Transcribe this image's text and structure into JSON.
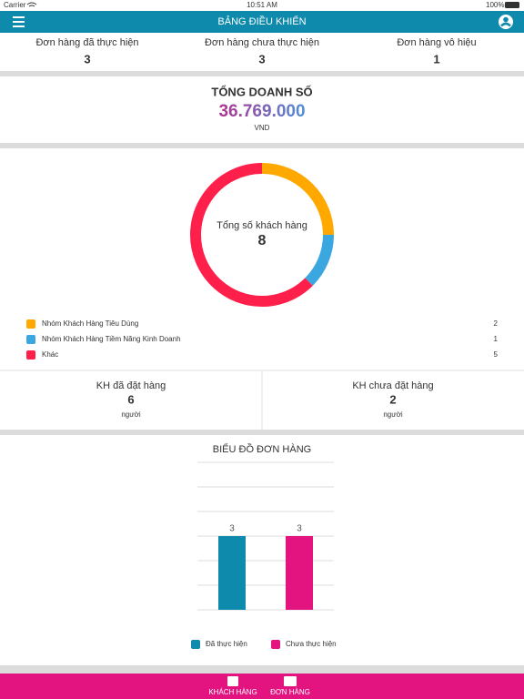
{
  "status_bar": {
    "carrier": "Carrier",
    "time": "10:51 AM",
    "battery": "100%"
  },
  "header": {
    "title": "BẢNG ĐIỀU KHIỂN"
  },
  "order_stats": [
    {
      "label": "Đơn hàng đã thực hiện",
      "value": 3
    },
    {
      "label": "Đơn hàng chưa thực hiện",
      "value": 3
    },
    {
      "label": "Đơn hàng vô hiệu",
      "value": 1
    }
  ],
  "revenue": {
    "title": "TỔNG DOANH SỐ",
    "amount": "36.769.000",
    "unit": "VND"
  },
  "customer_stats": [
    {
      "label": "KH đã đặt hàng",
      "value": 6,
      "unit": "người"
    },
    {
      "label": "KH chưa đặt hàng",
      "value": 2,
      "unit": "người"
    }
  ],
  "tab_bar": {
    "items": [
      "KHÁCH HÀNG",
      "ĐƠN HÀNG"
    ]
  },
  "chart_data": [
    {
      "type": "donut",
      "center_label": "Tổng số khách hàng",
      "total": 8,
      "categories": [
        "Nhóm Khách Hàng Tiêu Dùng",
        "Nhóm Khách Hàng Tiềm Năng Kinh Doanh",
        "Khác"
      ],
      "values": [
        2,
        1,
        5
      ],
      "colors": [
        "#ffa800",
        "#3ba7e0",
        "#ff1f4b"
      ]
    },
    {
      "type": "bar",
      "title": "BIỂU ĐỒ ĐƠN HÀNG",
      "categories": [
        "Đã thực hiện",
        "Chưa thực hiện"
      ],
      "values": [
        3,
        3
      ],
      "colors": [
        "#0e8aad",
        "#e3137f"
      ],
      "ylim": [
        0,
        6
      ],
      "yticks": [
        0,
        1,
        2,
        3,
        4,
        5,
        6
      ],
      "grid": true
    }
  ]
}
